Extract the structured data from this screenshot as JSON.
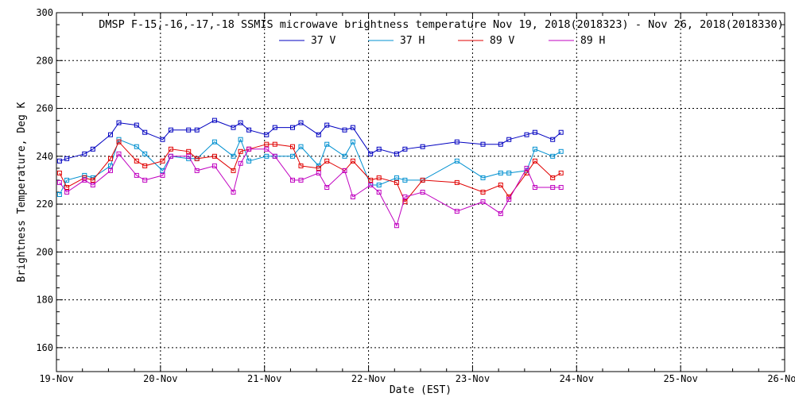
{
  "chart_data": {
    "type": "line",
    "title": "DMSP F-15,-16,-17,-18 SSMIS microwave brightness temperature Nov 19, 2018(2018323) - Nov 26, 2018(2018330)",
    "xlabel": "Date (EST)",
    "ylabel": "Brightness Temperature, Deg K",
    "xlim": [
      0,
      7
    ],
    "ylim": [
      150,
      300
    ],
    "x_ticks": [
      0,
      1,
      2,
      3,
      4,
      5,
      6,
      7
    ],
    "x_tick_labels": [
      "19-Nov",
      "20-Nov",
      "21-Nov",
      "22-Nov",
      "23-Nov",
      "24-Nov",
      "25-Nov",
      "26-Nov"
    ],
    "y_ticks": [
      160,
      180,
      200,
      220,
      240,
      260,
      280,
      300
    ],
    "y_tick_labels": [
      "160",
      "180",
      "200",
      "220",
      "240",
      "260",
      "280",
      "300"
    ],
    "x_unit": "days since 19-Nov 00:00 EST",
    "grid": true,
    "legend_position": "top-center",
    "series": [
      {
        "name": "37 V",
        "color": "#0000c0",
        "x": [
          0.03,
          0.1,
          0.27,
          0.35,
          0.52,
          0.6,
          0.77,
          0.85,
          1.02,
          1.1,
          1.27,
          1.35,
          1.52,
          1.7,
          1.77,
          1.85,
          2.02,
          2.1,
          2.27,
          2.35,
          2.52,
          2.6,
          2.77,
          2.85,
          3.02,
          3.1,
          3.27,
          3.35,
          3.52,
          3.85,
          4.1,
          4.27,
          4.35,
          4.52,
          4.6,
          4.77,
          4.85
        ],
        "values": [
          238,
          239,
          241,
          243,
          249,
          254,
          253,
          250,
          247,
          251,
          251,
          251,
          255,
          252,
          254,
          251,
          249,
          252,
          252,
          254,
          249,
          253,
          251,
          252,
          241,
          243,
          241,
          243,
          244,
          246,
          245,
          245,
          247,
          249,
          250,
          247,
          250
        ]
      },
      {
        "name": "37 H",
        "color": "#0090d0",
        "x": [
          0.03,
          0.1,
          0.27,
          0.35,
          0.52,
          0.6,
          0.77,
          0.85,
          1.02,
          1.1,
          1.27,
          1.35,
          1.52,
          1.7,
          1.77,
          1.85,
          2.02,
          2.1,
          2.27,
          2.35,
          2.52,
          2.6,
          2.77,
          2.85,
          3.02,
          3.1,
          3.27,
          3.35,
          3.52,
          3.85,
          4.1,
          4.27,
          4.35,
          4.52,
          4.6,
          4.77,
          4.85
        ],
        "values": [
          224,
          230,
          232,
          231,
          236,
          247,
          244,
          241,
          234,
          240,
          239,
          239,
          246,
          240,
          247,
          238,
          240,
          240,
          240,
          244,
          236,
          245,
          240,
          246,
          228,
          228,
          231,
          230,
          230,
          238,
          231,
          233,
          233,
          234,
          243,
          240,
          242
        ]
      },
      {
        "name": "89 V",
        "color": "#e00000",
        "x": [
          0.03,
          0.1,
          0.27,
          0.35,
          0.52,
          0.6,
          0.77,
          0.85,
          1.02,
          1.1,
          1.27,
          1.35,
          1.52,
          1.7,
          1.77,
          1.85,
          2.02,
          2.1,
          2.27,
          2.35,
          2.52,
          2.6,
          2.77,
          2.85,
          3.02,
          3.1,
          3.27,
          3.35,
          3.52,
          3.85,
          4.1,
          4.27,
          4.35,
          4.52,
          4.6,
          4.77,
          4.85
        ],
        "values": [
          233,
          227,
          231,
          230,
          239,
          246,
          238,
          236,
          238,
          243,
          242,
          239,
          240,
          234,
          242,
          243,
          245,
          245,
          244,
          236,
          235,
          238,
          234,
          238,
          230,
          231,
          229,
          221,
          230,
          229,
          225,
          228,
          223,
          233,
          238,
          231,
          233
        ]
      },
      {
        "name": "89 H",
        "color": "#c000c0",
        "x": [
          0.03,
          0.1,
          0.27,
          0.35,
          0.52,
          0.6,
          0.77,
          0.85,
          1.02,
          1.1,
          1.27,
          1.35,
          1.52,
          1.7,
          1.77,
          1.85,
          2.02,
          2.1,
          2.27,
          2.35,
          2.52,
          2.6,
          2.77,
          2.85,
          3.02,
          3.1,
          3.27,
          3.35,
          3.52,
          3.85,
          4.1,
          4.27,
          4.35,
          4.52,
          4.6,
          4.77,
          4.85
        ],
        "values": [
          229,
          225,
          230,
          228,
          234,
          241,
          232,
          230,
          232,
          240,
          240,
          234,
          236,
          225,
          237,
          243,
          243,
          240,
          230,
          230,
          233,
          227,
          234,
          223,
          228,
          225,
          211,
          223,
          225,
          217,
          221,
          216,
          222,
          235,
          227,
          227,
          227
        ]
      }
    ]
  }
}
